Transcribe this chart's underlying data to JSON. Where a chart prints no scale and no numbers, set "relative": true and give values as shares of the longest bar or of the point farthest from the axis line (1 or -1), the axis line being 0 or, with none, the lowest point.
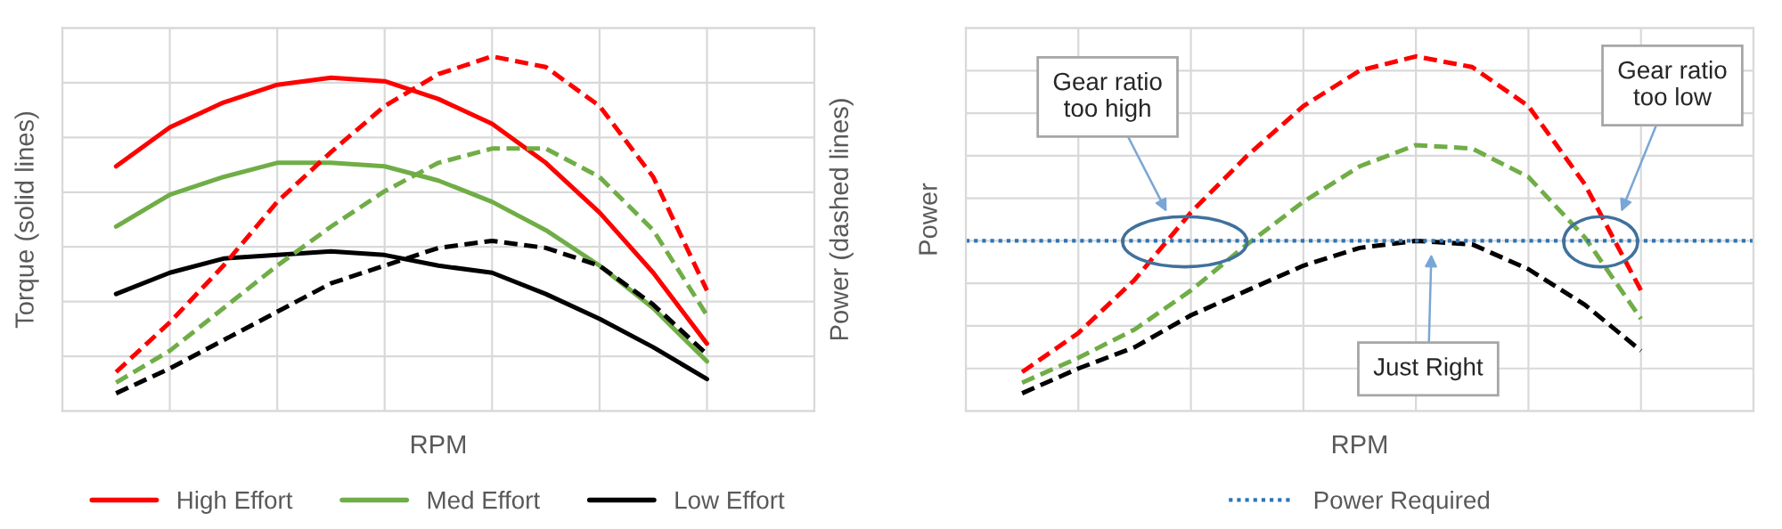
{
  "chart_data": [
    {
      "type": "line",
      "relative": true,
      "xlabel": "RPM",
      "ylabel": "Torque (solid lines)",
      "y2label": "Power (dashed lines)",
      "grid": true,
      "legend": "bottom",
      "categories": [
        null,
        null,
        null,
        null,
        null,
        null,
        null,
        null,
        null,
        null,
        null,
        null
      ],
      "series": [
        {
          "name": "High Effort",
          "color": "#ff0000",
          "line_style": "solid",
          "values": [
            0.69,
            0.8,
            0.87,
            0.92,
            0.94,
            0.93,
            0.88,
            0.81,
            0.7,
            0.56,
            0.39,
            0.19
          ]
        },
        {
          "name": "Med Effort",
          "color": "#70ad47",
          "line_style": "solid",
          "values": [
            0.52,
            0.61,
            0.66,
            0.7,
            0.7,
            0.69,
            0.65,
            0.59,
            0.51,
            0.41,
            0.29,
            0.14
          ]
        },
        {
          "name": "Low Effort",
          "color": "#000000",
          "line_style": "solid",
          "values": [
            0.33,
            0.39,
            0.43,
            0.44,
            0.45,
            0.44,
            0.41,
            0.39,
            0.33,
            0.26,
            0.18,
            0.09
          ]
        },
        {
          "color": "#ff0000",
          "line_style": "dashed",
          "values": [
            0.11,
            0.25,
            0.41,
            0.59,
            0.73,
            0.86,
            0.95,
            1.0,
            0.97,
            0.86,
            0.66,
            0.34
          ]
        },
        {
          "color": "#70ad47",
          "line_style": "dashed",
          "values": [
            0.08,
            0.17,
            0.29,
            0.41,
            0.52,
            0.62,
            0.7,
            0.74,
            0.74,
            0.66,
            0.51,
            0.27
          ]
        },
        {
          "color": "#000000",
          "line_style": "dashed",
          "values": [
            0.05,
            0.12,
            0.2,
            0.28,
            0.36,
            0.41,
            0.46,
            0.48,
            0.46,
            0.41,
            0.3,
            0.16
          ]
        }
      ]
    },
    {
      "type": "line",
      "relative": true,
      "xlabel": "RPM",
      "ylabel": "Power",
      "grid": true,
      "legend": "bottom",
      "categories": [
        null,
        null,
        null,
        null,
        null,
        null,
        null,
        null,
        null,
        null,
        null,
        null
      ],
      "series": [
        {
          "color": "#ff0000",
          "line_style": "dashed",
          "values": [
            0.11,
            0.22,
            0.37,
            0.56,
            0.72,
            0.86,
            0.96,
            1.0,
            0.97,
            0.86,
            0.64,
            0.34
          ]
        },
        {
          "color": "#70ad47",
          "line_style": "dashed",
          "values": [
            0.08,
            0.15,
            0.23,
            0.34,
            0.47,
            0.59,
            0.69,
            0.75,
            0.74,
            0.66,
            0.49,
            0.26
          ]
        },
        {
          "color": "#000000",
          "line_style": "dashed",
          "values": [
            0.05,
            0.12,
            0.18,
            0.27,
            0.34,
            0.41,
            0.46,
            0.48,
            0.47,
            0.4,
            0.3,
            0.17
          ]
        }
      ],
      "ref_lines": [
        {
          "axis": "y",
          "value": 0.48,
          "label": "Power Required",
          "color": "#2e75b6",
          "line_style": "dotted"
        }
      ],
      "annotations": [
        "Gear ratio\ntoo high",
        "Gear ratio\ntoo low",
        "Just Right"
      ]
    }
  ]
}
